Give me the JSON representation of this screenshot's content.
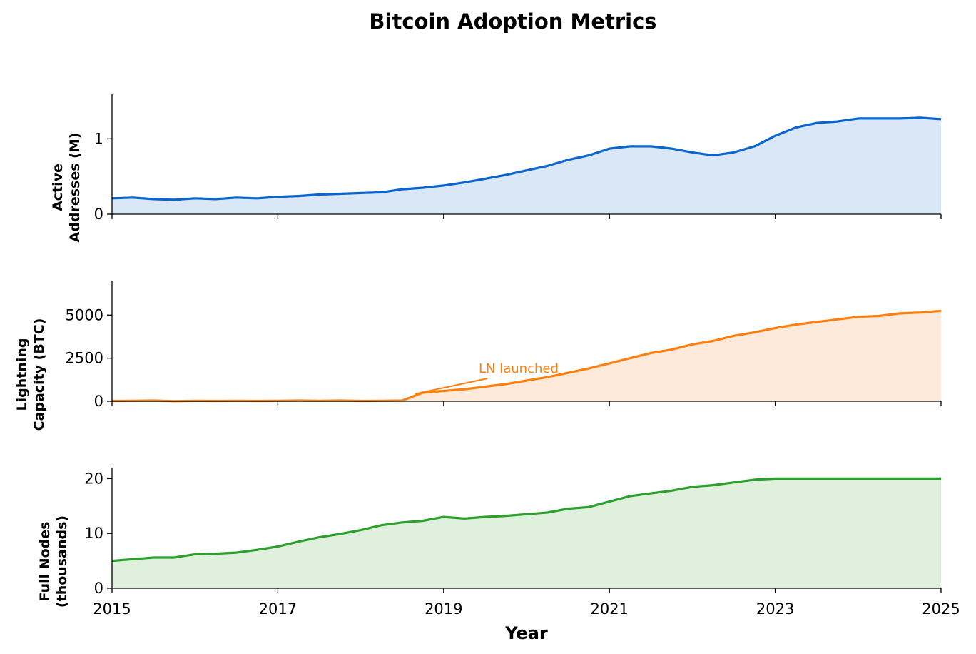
{
  "chart_data": {
    "type": "area",
    "title": "Bitcoin Adoption Metrics",
    "xlabel": "Year",
    "xlim": [
      2015,
      2025
    ],
    "xticks": [
      "2015",
      "2017",
      "2019",
      "2021",
      "2023",
      "2025"
    ],
    "x_step_years": 0.25,
    "panels": [
      {
        "ylabel": [
          "Active",
          "Addresses (M)"
        ],
        "ylim": [
          0,
          1.6
        ],
        "yticks": [
          0,
          1
        ],
        "ytick_labels": [
          "0",
          "1"
        ],
        "color": "#0a66cc",
        "fill": "#d9e7f6",
        "values": [
          0.21,
          0.22,
          0.2,
          0.19,
          0.21,
          0.2,
          0.22,
          0.21,
          0.23,
          0.24,
          0.26,
          0.27,
          0.28,
          0.29,
          0.33,
          0.35,
          0.38,
          0.42,
          0.47,
          0.52,
          0.58,
          0.64,
          0.72,
          0.78,
          0.87,
          0.9,
          0.9,
          0.87,
          0.82,
          0.78,
          0.82,
          0.9,
          1.04,
          1.15,
          1.21,
          1.23,
          1.27,
          1.27,
          1.27,
          1.28,
          1.26
        ]
      },
      {
        "ylabel": [
          "Lightning",
          "Capacity (BTC)"
        ],
        "ylim": [
          0,
          7000
        ],
        "yticks": [
          0,
          2500,
          5000
        ],
        "ytick_labels": [
          "0",
          "2500",
          "5000"
        ],
        "color": "#ff7f0e",
        "fill": "#fdeadb",
        "values": [
          20,
          30,
          40,
          10,
          30,
          20,
          30,
          20,
          30,
          40,
          30,
          40,
          20,
          30,
          40,
          500,
          600,
          700,
          850,
          1000,
          1200,
          1400,
          1650,
          1900,
          2200,
          2500,
          2800,
          3000,
          3300,
          3500,
          3800,
          4000,
          4250,
          4450,
          4600,
          4750,
          4900,
          4950,
          5100,
          5150,
          5250
        ],
        "annotation": {
          "text": "LN launched",
          "x": 2018.7,
          "y": 350,
          "text_x": 2019.2,
          "text_y": 1900
        }
      },
      {
        "ylabel": [
          "Full Nodes",
          "(thousands)"
        ],
        "ylim": [
          0,
          22
        ],
        "yticks": [
          0,
          10,
          20
        ],
        "ytick_labels": [
          "0",
          "10",
          "20"
        ],
        "color": "#2ca02c",
        "fill": "#dff0dc",
        "values": [
          5.0,
          5.3,
          5.6,
          5.6,
          6.2,
          6.3,
          6.5,
          7.0,
          7.6,
          8.5,
          9.3,
          9.9,
          10.6,
          11.5,
          12.0,
          12.3,
          13.0,
          12.7,
          13.0,
          13.2,
          13.5,
          13.8,
          14.5,
          14.8,
          15.8,
          16.8,
          17.3,
          17.8,
          18.5,
          18.8,
          19.3,
          19.8,
          20,
          20,
          20,
          20,
          20,
          20,
          20,
          20,
          20
        ]
      }
    ]
  }
}
